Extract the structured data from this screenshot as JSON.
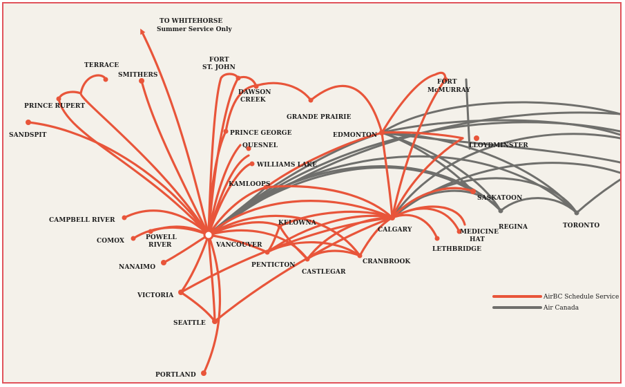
{
  "colors": {
    "airbc": "#e8553a",
    "aircanada": "#6f6f6c",
    "background": "#f4f1ea",
    "border": "#e0525a",
    "text": "#1c1c1c"
  },
  "note": {
    "line1": "TO WHITEHORSE",
    "line2": "Summer Service Only"
  },
  "legend": {
    "airbc": "AirBC Schedule Service",
    "aircanada": "Air Canada"
  },
  "cities": {
    "vancouver": "VANCOUVER",
    "victoria": "VICTORIA",
    "seattle": "SEATTLE",
    "portland": "PORTLAND",
    "nanaimo": "NANAIMO",
    "comox": "COMOX",
    "campbell_river": "CAMPBELL RIVER",
    "powell_river_1": "POWELL",
    "powell_river_2": "RIVER",
    "sandspit": "SANDSPIT",
    "prince_rupert": "PRINCE RUPERT",
    "terrace": "TERRACE",
    "smithers": "SMITHERS",
    "fort_st_john_1": "FORT",
    "fort_st_john_2": "ST. JOHN",
    "dawson_creek_1": "DAWSON",
    "dawson_creek_2": "CREEK",
    "prince_george": "PRINCE GEORGE",
    "quesnel": "QUESNEL",
    "williams_lake": "WILLIAMS LAKE",
    "kamloops": "KAMLOOPS",
    "grande_prairie": "GRANDE PRAIRIE",
    "edmonton": "EDMONTON",
    "fort_mcmurray_1": "FORT",
    "fort_mcmurray_2": "McMURRAY",
    "lloydminster": "LLOYDMINSTER",
    "saskatoon": "SASKATOON",
    "kelowna": "KELOWNA",
    "penticton": "PENTICTON",
    "castlegar": "CASTLEGAR",
    "cranbrook": "CRANBROOK",
    "calgary": "CALGARY",
    "lethbridge": "LETHBRIDGE",
    "medicine_hat_1": "MEDICINE",
    "medicine_hat_2": "HAT",
    "regina": "REGINA",
    "toronto": "TORONTO"
  }
}
